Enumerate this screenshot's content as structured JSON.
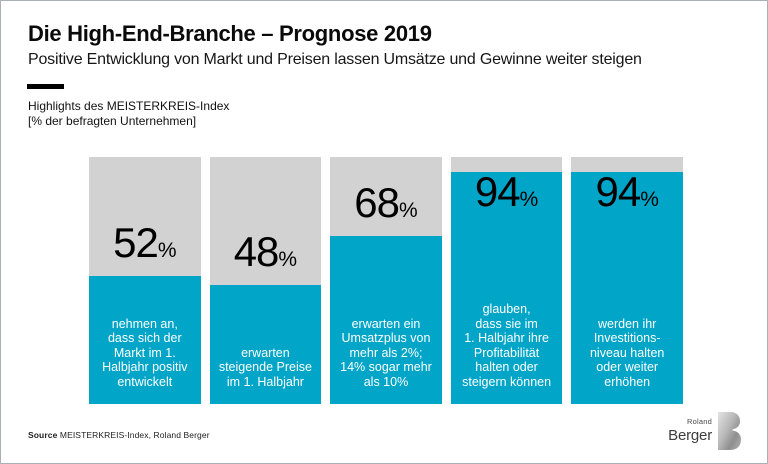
{
  "page": {
    "title": "Die High-End-Branche – Prognose 2019",
    "subtitle": "Positive Entwicklung von Markt und Preisen lassen Umsätze und Gewinne weiter steigen",
    "chart_note": "Highlights des MEISTERKREIS-Index\n[% der befragten Unternehmen]"
  },
  "chart_data": {
    "type": "bar",
    "title": "Highlights des MEISTERKREIS-Index",
    "ylabel": "% der befragten Unternehmen",
    "unit": "%",
    "ylim": [
      0,
      100
    ],
    "grid": false,
    "colors": {
      "fill": "#00a5c8",
      "track": "#d2d2d2"
    },
    "values": [
      52,
      48,
      68,
      94,
      94
    ],
    "bars": [
      {
        "value": 52,
        "caption": "nehmen an,\ndass sich der\nMarkt im 1.\nHalbjahr positiv\nentwickelt"
      },
      {
        "value": 48,
        "caption": "erwarten\nsteigende Preise\nim 1. Halbjahr"
      },
      {
        "value": 68,
        "caption": "erwarten ein\nUmsatzplus von\nmehr als 2%;\n14% sogar mehr\nals 10%"
      },
      {
        "value": 94,
        "caption": "glauben,\ndass sie im\n1. Halbjahr ihre\nProfitabilität\nhalten oder\nsteigern können"
      },
      {
        "value": 94,
        "caption": "werden ihr\nInvestitions-\nniveau halten\noder weiter\nerhöhen"
      }
    ]
  },
  "footer": {
    "source_label": "Source",
    "source_text": " MEISTERKREIS-Index, Roland Berger",
    "logo_line1": "Roland",
    "logo_line2": "Berger"
  }
}
